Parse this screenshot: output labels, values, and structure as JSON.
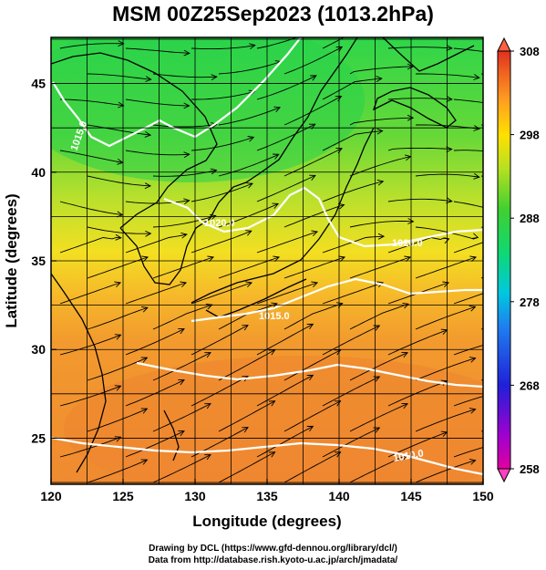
{
  "title": "MSM 00Z25Sep2023 (1013.2hPa)",
  "map": {
    "xlabel": "Longitude (degrees)",
    "ylabel": "Latitude  (degrees)",
    "lon_range": [
      120,
      150
    ],
    "lat_range": [
      22.4,
      47.6
    ],
    "lon_ticks": [
      "120",
      "125",
      "130",
      "135",
      "140",
      "145",
      "150"
    ],
    "lat_ticks": [
      "25",
      "30",
      "35",
      "40",
      "45"
    ],
    "grid": true,
    "contour_labels": [
      "1015.0",
      "1020.0",
      "1015.0",
      "1020.0",
      "1010.0"
    ],
    "colors": {
      "coast": "#000000",
      "streamline": "#000000",
      "isobar": "#ffffff"
    }
  },
  "colorbar": {
    "ticks": [
      "308",
      "298",
      "288",
      "278",
      "268",
      "258"
    ],
    "min": 258,
    "max": 308,
    "colors": [
      "#e000a0",
      "#a000d0",
      "#3030e0",
      "#2080f0",
      "#00c8e0",
      "#10d870",
      "#40d030",
      "#b8e020",
      "#ffe000",
      "#ffa020",
      "#f06020",
      "#e03020",
      "#ff6040"
    ]
  },
  "credits": {
    "line1": "Drawing by DCL (https://www.gfd-dennou.org/library/dcl/)",
    "line2": "Data from http://database.rish.kyoto-u.ac.jp/arch/jmadata/"
  }
}
